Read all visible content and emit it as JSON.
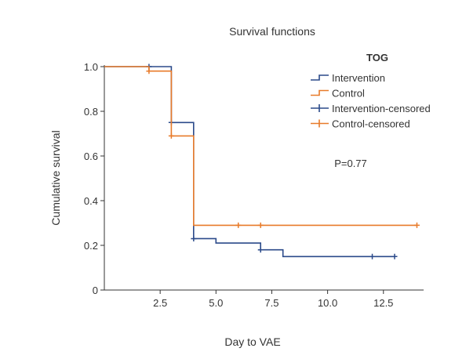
{
  "chart_data": {
    "type": "line",
    "title": "Survival functions",
    "xlabel": "Day to VAE",
    "ylabel": "Cumulative survival",
    "xlim": [
      0,
      14.3
    ],
    "ylim": [
      0,
      1.0
    ],
    "xticks": [
      "2.5",
      "5.0",
      "7.5",
      "10.0",
      "12.5"
    ],
    "yticks": [
      "0",
      "0.2",
      "0.4",
      "0.6",
      "0.8",
      "1.0"
    ],
    "grid": false,
    "legend_title": "TOG",
    "legend_position": "top-right",
    "annotation": "P=0.77",
    "colors": {
      "intervention": "#2b4a8a",
      "control": "#e87b2a"
    },
    "series": [
      {
        "name": "Intervention",
        "step_points": [
          [
            0,
            1.0
          ],
          [
            3,
            1.0
          ],
          [
            3,
            0.75
          ],
          [
            4,
            0.75
          ],
          [
            4,
            0.23
          ],
          [
            5,
            0.23
          ],
          [
            5,
            0.21
          ],
          [
            7,
            0.21
          ],
          [
            7,
            0.18
          ],
          [
            8,
            0.18
          ],
          [
            8,
            0.15
          ],
          [
            13,
            0.15
          ]
        ],
        "censored": [
          [
            2,
            1.0
          ],
          [
            3,
            0.75
          ],
          [
            4,
            0.23
          ],
          [
            7,
            0.18
          ],
          [
            12,
            0.15
          ],
          [
            13,
            0.15
          ]
        ]
      },
      {
        "name": "Control",
        "step_points": [
          [
            0,
            1.0
          ],
          [
            2,
            1.0
          ],
          [
            2,
            0.98
          ],
          [
            3,
            0.98
          ],
          [
            3,
            0.69
          ],
          [
            4,
            0.69
          ],
          [
            4,
            0.29
          ],
          [
            14,
            0.29
          ]
        ],
        "censored": [
          [
            2,
            0.98
          ],
          [
            3,
            0.69
          ],
          [
            6,
            0.29
          ],
          [
            7,
            0.29
          ],
          [
            14,
            0.29
          ]
        ]
      }
    ],
    "legend": [
      {
        "label": "Intervention",
        "symbol": "step",
        "color_key": "intervention"
      },
      {
        "label": "Control",
        "symbol": "step",
        "color_key": "control"
      },
      {
        "label": "Intervention-censored",
        "symbol": "cross",
        "color_key": "intervention"
      },
      {
        "label": "Control-censored",
        "symbol": "cross",
        "color_key": "control"
      }
    ]
  }
}
